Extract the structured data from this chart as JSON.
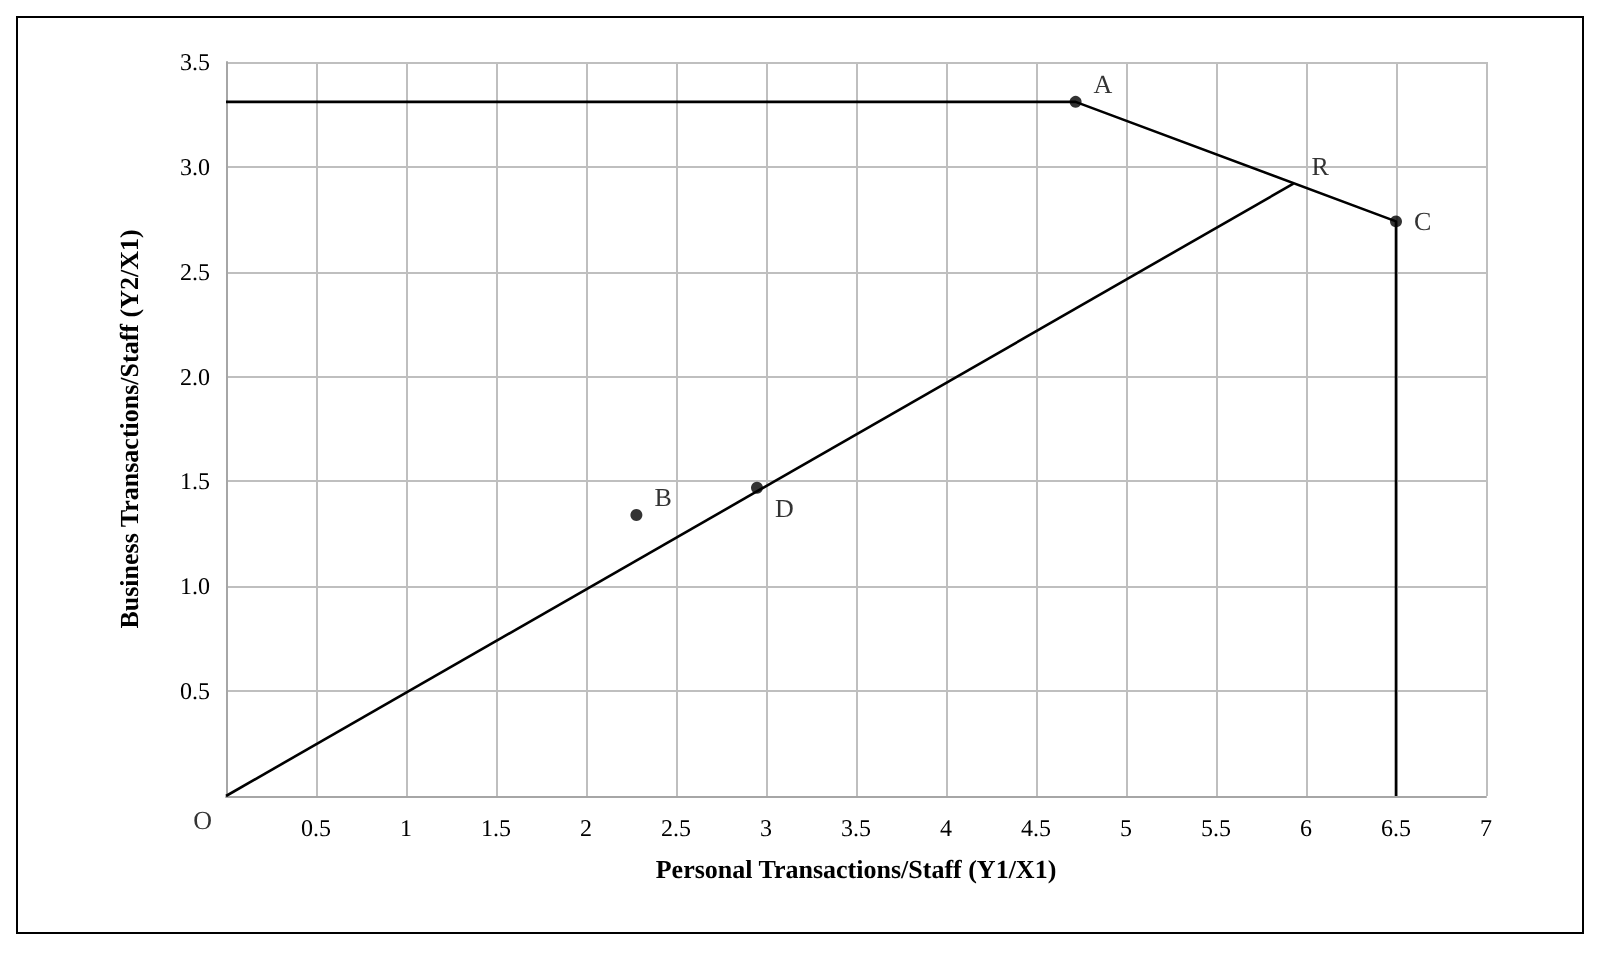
{
  "chart_data": {
    "type": "line",
    "xlabel": "Personal Transactions/Staff (Y1/X1)",
    "ylabel": "Business Transactions/Staff (Y2/X1)",
    "xlim": [
      0,
      7
    ],
    "xticks": [
      {
        "value": 0,
        "label": null
      },
      0.5,
      1,
      1.5,
      2,
      2.5,
      3,
      3.5,
      4,
      4.5,
      5,
      5.5,
      6,
      6.5,
      7
    ],
    "ylim": [
      0,
      3.5
    ],
    "yticks": [
      {
        "value": 0,
        "label": null
      },
      {
        "value": 0.5,
        "label": "0.5"
      },
      {
        "value": 1,
        "label": "1.0"
      },
      {
        "value": 1.5,
        "label": "1.5"
      },
      {
        "value": 2,
        "label": "2.0"
      },
      {
        "value": 2.5,
        "label": "2.5"
      },
      {
        "value": 3,
        "label": "3.0"
      },
      {
        "value": 3.5,
        "label": "3.5"
      }
    ],
    "grid": true,
    "series": [
      {
        "color": "#000000",
        "x": [
          0,
          4.72,
          6.5,
          6.5
        ],
        "values": [
          3.31,
          3.31,
          2.74,
          0
        ]
      },
      {
        "color": "#000000",
        "x": [
          0,
          5.93
        ],
        "values": [
          0,
          2.92
        ]
      },
      {
        "type": "scatter",
        "color": "#000000",
        "marker": "circle",
        "x": [
          4.72,
          2.28,
          6.5,
          2.95
        ],
        "values": [
          3.31,
          1.34,
          2.74,
          1.47
        ]
      }
    ],
    "annotations": [
      {
        "text": "A",
        "x": 4.72,
        "y": 3.31
      },
      {
        "text": "B",
        "x": 2.28,
        "y": 1.34
      },
      {
        "text": "C",
        "x": 6.5,
        "y": 2.74
      },
      {
        "text": "D",
        "x": 2.95,
        "y": 1.47
      },
      {
        "text": "R",
        "x": 5.93,
        "y": 2.92
      },
      {
        "text": "O",
        "x": 0,
        "y": 0
      }
    ]
  }
}
